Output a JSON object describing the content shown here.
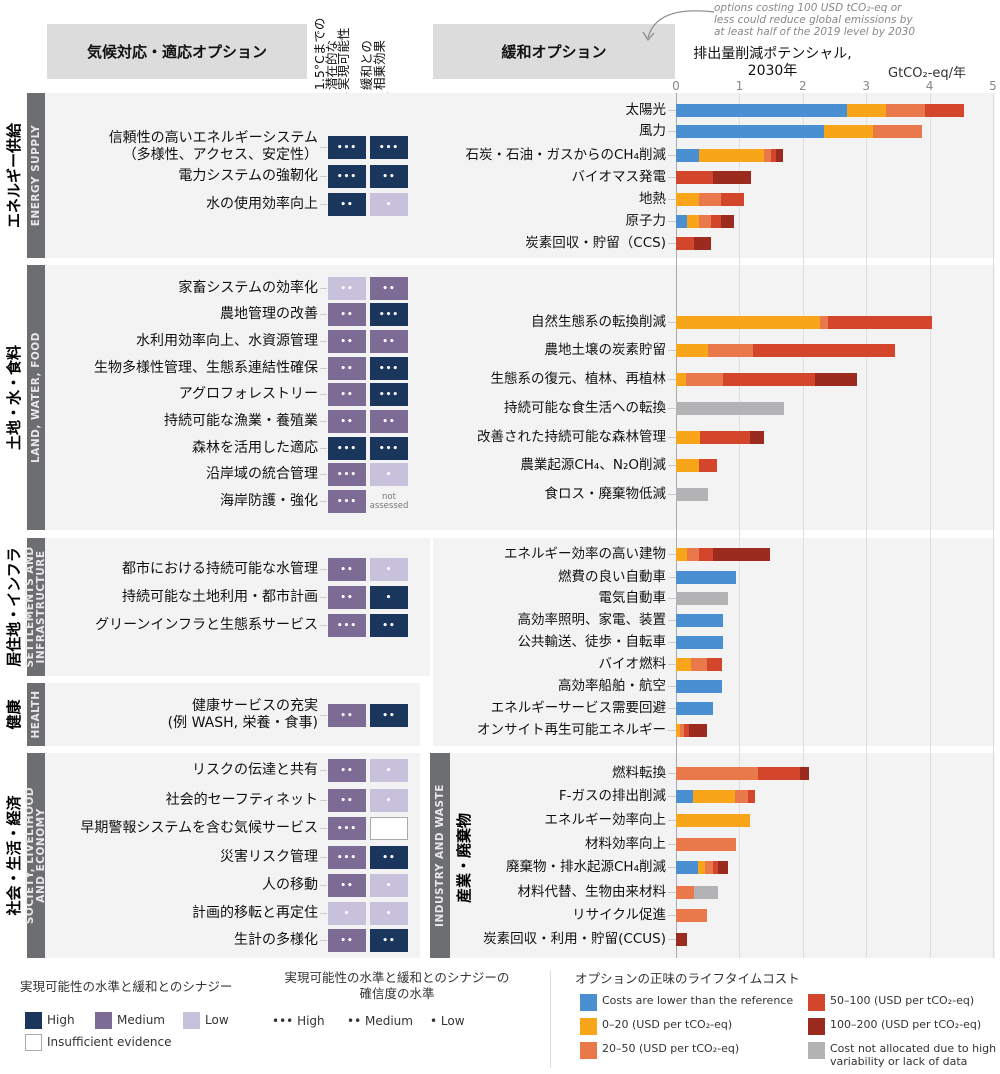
{
  "header": {
    "adaptation_title": "気候対応・適応オプション",
    "col_feasibility": "1.5°Cまでの\n潜在的な\n実現可能性",
    "col_synergy": "緩和との\n相乗効果",
    "mitigation_title": "緩和オプション",
    "annotation": "options costing 100 USD tCO₂-eq or\nless could reduce global emissions by\nat least half of the 2019 level by 2030"
  },
  "adaptation": {
    "sections": [
      {
        "label_jp": "エネルギー供給",
        "label_en": "ENERGY SUPPLY",
        "rows": [
          {
            "label": "信頼性の高いエネルギーシステム\n（多様性、アクセス、安定性）",
            "feasibility": {
              "level": "high",
              "confidence": "•••"
            },
            "synergy": {
              "level": "high",
              "confidence": "•••"
            }
          },
          {
            "label": "電力システムの強靭化",
            "feasibility": {
              "level": "high",
              "confidence": "•••"
            },
            "synergy": {
              "level": "high",
              "confidence": "••"
            }
          },
          {
            "label": "水の使用効率向上",
            "feasibility": {
              "level": "high",
              "confidence": "••"
            },
            "synergy": {
              "level": "low",
              "confidence": "•"
            }
          }
        ]
      },
      {
        "label_jp": "土地・水・食料",
        "label_en": "LAND, WATER, FOOD",
        "rows": [
          {
            "label": "家畜システムの効率化",
            "feasibility": {
              "level": "low",
              "confidence": "••"
            },
            "synergy": {
              "level": "medium",
              "confidence": "••"
            }
          },
          {
            "label": "農地管理の改善",
            "feasibility": {
              "level": "medium",
              "confidence": "••"
            },
            "synergy": {
              "level": "high",
              "confidence": "•••"
            }
          },
          {
            "label": "水利用効率向上、水資源管理",
            "feasibility": {
              "level": "medium",
              "confidence": "••"
            },
            "synergy": {
              "level": "medium",
              "confidence": "••"
            }
          },
          {
            "label": "生物多様性管理、生態系連結性確保",
            "feasibility": {
              "level": "medium",
              "confidence": "••"
            },
            "synergy": {
              "level": "high",
              "confidence": "•••"
            }
          },
          {
            "label": "アグロフォレストリー",
            "feasibility": {
              "level": "medium",
              "confidence": "••"
            },
            "synergy": {
              "level": "high",
              "confidence": "•••"
            }
          },
          {
            "label": "持続可能な漁業・養殖業",
            "feasibility": {
              "level": "medium",
              "confidence": "••"
            },
            "synergy": {
              "level": "medium",
              "confidence": "••"
            }
          },
          {
            "label": "森林を活用した適応",
            "feasibility": {
              "level": "high",
              "confidence": "•••"
            },
            "synergy": {
              "level": "high",
              "confidence": "•••"
            }
          },
          {
            "label": "沿岸域の統合管理",
            "feasibility": {
              "level": "medium",
              "confidence": "•••"
            },
            "synergy": {
              "level": "low",
              "confidence": "•"
            }
          },
          {
            "label": "海岸防護・強化",
            "feasibility": {
              "level": "medium",
              "confidence": "•••"
            },
            "synergy": {
              "level": "na",
              "confidence": "not\nassessed"
            }
          }
        ]
      },
      {
        "label_jp": "居住地・インフラ",
        "label_en": "SETTLEMENTS AND\nINFRASTRUCTURE",
        "rows": [
          {
            "label": "都市における持続可能な水管理",
            "feasibility": {
              "level": "medium",
              "confidence": "••"
            },
            "synergy": {
              "level": "low",
              "confidence": "•"
            }
          },
          {
            "label": "持続可能な土地利用・都市計画",
            "feasibility": {
              "level": "medium",
              "confidence": "••"
            },
            "synergy": {
              "level": "high",
              "confidence": "•"
            }
          },
          {
            "label": "グリーンインフラと生態系サービス",
            "feasibility": {
              "level": "medium",
              "confidence": "•••"
            },
            "synergy": {
              "level": "high",
              "confidence": "••"
            }
          }
        ]
      },
      {
        "label_jp": "健康",
        "label_en": "HEALTH",
        "rows": [
          {
            "label": "健康サービスの充実\n(例 WASH, 栄養・食事)",
            "feasibility": {
              "level": "medium",
              "confidence": "••"
            },
            "synergy": {
              "level": "high",
              "confidence": "••"
            }
          }
        ]
      },
      {
        "label_jp": "社会・生活・経済",
        "label_en": "SOCIETY, LIVELIHOOD\nAND ECONOMY",
        "rows": [
          {
            "label": "リスクの伝達と共有",
            "feasibility": {
              "level": "medium",
              "confidence": "••"
            },
            "synergy": {
              "level": "low",
              "confidence": "•"
            }
          },
          {
            "label": "社会的セーフティネット",
            "feasibility": {
              "level": "medium",
              "confidence": "••"
            },
            "synergy": {
              "level": "low",
              "confidence": "•"
            }
          },
          {
            "label": "早期警報システムを含む気候サービス",
            "feasibility": {
              "level": "medium",
              "confidence": "•••"
            },
            "synergy": {
              "level": "insufficient",
              "confidence": ""
            }
          },
          {
            "label": "災害リスク管理",
            "feasibility": {
              "level": "medium",
              "confidence": "•••"
            },
            "synergy": {
              "level": "high",
              "confidence": "••"
            }
          },
          {
            "label": "人の移動",
            "feasibility": {
              "level": "medium",
              "confidence": "••"
            },
            "synergy": {
              "level": "low",
              "confidence": "•"
            }
          },
          {
            "label": "計画的移転と再定住",
            "feasibility": {
              "level": "low",
              "confidence": "•"
            },
            "synergy": {
              "level": "low",
              "confidence": "•"
            }
          },
          {
            "label": "生計の多様化",
            "feasibility": {
              "level": "medium",
              "confidence": "••"
            },
            "synergy": {
              "level": "high",
              "confidence": "••"
            }
          }
        ]
      }
    ]
  },
  "chart_data": {
    "type": "bar",
    "orientation": "horizontal",
    "stacked": true,
    "title": "排出量削減ポテンシャル,\n2030年",
    "unit": "GtCO₂-eq/年",
    "xlim": [
      0,
      5
    ],
    "xticks": [
      "0",
      "1",
      "2",
      "3",
      "4",
      "5"
    ],
    "grid": true,
    "series": [
      {
        "name": "Costs are lower than the reference",
        "color": "#4a8fd1"
      },
      {
        "name": "0–20 (USD per tCO₂-eq)",
        "color": "#f9a51a"
      },
      {
        "name": "20–50 (USD per tCO₂-eq)",
        "color": "#e9794a"
      },
      {
        "name": "50–100 (USD per tCO₂-eq)",
        "color": "#d4462b"
      },
      {
        "name": "100–200 (USD per tCO₂-eq)",
        "color": "#9b2b1f"
      },
      {
        "name": "Cost not allocated due to high variability or lack of data",
        "color": "#b3b3b6"
      }
    ],
    "groups": [
      {
        "label_en": "",
        "label_jp": "",
        "bars": [
          {
            "label": "太陽光",
            "values": [
              2.7,
              0.62,
              0.61,
              0.61,
              0,
              0
            ]
          },
          {
            "label": "風力",
            "values": [
              2.33,
              0.77,
              0.78,
              0,
              0,
              0
            ]
          },
          {
            "label": "石炭・石油・ガスからのCH₄削減",
            "values": [
              0.37,
              1.02,
              0.11,
              0.07,
              0.11,
              0
            ]
          },
          {
            "label": "バイオマス発電",
            "values": [
              0,
              0,
              0,
              0.59,
              0.59,
              0
            ]
          },
          {
            "label": "地熱",
            "values": [
              0,
              0.37,
              0.34,
              0.36,
              0,
              0
            ]
          },
          {
            "label": "原子力",
            "values": [
              0.18,
              0.19,
              0.18,
              0.16,
              0.2,
              0
            ]
          },
          {
            "label": "炭素回収・貯留（CCS)",
            "values": [
              0,
              0,
              0,
              0.28,
              0.27,
              0
            ]
          }
        ]
      },
      {
        "label_en": "",
        "label_jp": "",
        "bars": [
          {
            "label": "自然生態系の転換削減",
            "values": [
              0,
              2.27,
              0.13,
              1.64,
              0,
              0
            ]
          },
          {
            "label": "農地土壌の炭素貯留",
            "values": [
              0,
              0.5,
              0.72,
              2.23,
              0,
              0
            ]
          },
          {
            "label": "生態系の復元、植林、再植林",
            "values": [
              0,
              0.16,
              0.58,
              1.45,
              0.66,
              0
            ]
          },
          {
            "label": "持続可能な食生活への転換",
            "values": [
              0,
              0,
              0,
              0,
              0,
              1.7
            ]
          },
          {
            "label": "改善された持続可能な森林管理",
            "values": [
              0,
              0.38,
              0,
              0.78,
              0.23,
              0
            ]
          },
          {
            "label": "農業起源CH₄、N₂O削減",
            "values": [
              0,
              0.36,
              0,
              0.28,
              0,
              0
            ]
          },
          {
            "label": "食ロス・廃棄物低減",
            "values": [
              0,
              0,
              0,
              0,
              0,
              0.5
            ]
          }
        ]
      },
      {
        "label_en": "",
        "label_jp": "",
        "bars": [
          {
            "label": "エネルギー効率の高い建物",
            "values": [
              0,
              0.18,
              0.18,
              0.22,
              0.9,
              0
            ]
          },
          {
            "label": "燃費の良い自動車",
            "values": [
              0.94,
              0,
              0,
              0,
              0,
              0
            ]
          },
          {
            "label": "電気自動車",
            "values": [
              0,
              0,
              0,
              0,
              0,
              0.82
            ]
          },
          {
            "label": "高効率照明、家電、装置",
            "values": [
              0.74,
              0,
              0,
              0,
              0,
              0
            ]
          },
          {
            "label": "公共輸送、徒歩・自転車",
            "values": [
              0.74,
              0,
              0,
              0,
              0,
              0
            ]
          },
          {
            "label": "バイオ燃料",
            "values": [
              0,
              0.23,
              0.26,
              0.24,
              0,
              0
            ]
          },
          {
            "label": "高効率船舶・航空",
            "values": [
              0.72,
              0,
              0,
              0,
              0,
              0
            ]
          },
          {
            "label": "エネルギーサービス需要回避",
            "values": [
              0.58,
              0,
              0,
              0,
              0,
              0
            ]
          },
          {
            "label": "オンサイト再生可能エネルギー",
            "values": [
              0,
              0.06,
              0.06,
              0.08,
              0.29,
              0
            ]
          }
        ]
      },
      {
        "label_en": "INDUSTRY AND WASTE",
        "label_jp": "産業・廃棄物",
        "bars": [
          {
            "label": "燃料転換",
            "values": [
              0,
              0,
              1.29,
              0.66,
              0.15,
              0
            ]
          },
          {
            "label": "F-ガスの排出削減",
            "values": [
              0.27,
              0.66,
              0.21,
              0.1,
              0,
              0
            ]
          },
          {
            "label": "エネルギー効率向上",
            "values": [
              0,
              1.16,
              0,
              0,
              0,
              0
            ]
          },
          {
            "label": "材料効率向上",
            "values": [
              0,
              0,
              0.94,
              0,
              0,
              0
            ]
          },
          {
            "label": "廃棄物・排水起源CH₄削減",
            "values": [
              0.35,
              0.11,
              0.13,
              0.08,
              0.15,
              0
            ]
          },
          {
            "label": "材料代替、生物由来材料",
            "values": [
              0,
              0,
              0.29,
              0,
              0,
              0.37
            ]
          },
          {
            "label": "リサイクル促進",
            "values": [
              0,
              0,
              0.49,
              0,
              0,
              0
            ]
          },
          {
            "label": "炭素回収・利用・貯留(CCUS)",
            "values": [
              0,
              0,
              0,
              0,
              0.17,
              0
            ]
          }
        ]
      }
    ]
  },
  "legend": {
    "level_title": "実現可能性の水準と緩和とのシナジー",
    "level_items": [
      {
        "label": "High",
        "color": "#1b365d"
      },
      {
        "label": "Medium",
        "color": "#7b6b95"
      },
      {
        "label": "Low",
        "color": "#c7c1dc"
      }
    ],
    "insufficient": "Insufficient evidence",
    "confidence_title": "実現可能性の水準と緩和とのシナジーの\n確信度の水準",
    "confidence_items": [
      {
        "dots": "•••",
        "label": "High"
      },
      {
        "dots": "••",
        "label": "Medium"
      },
      {
        "dots": "•",
        "label": "Low"
      }
    ],
    "cost_title": "オプションの正味のライフタイムコスト"
  }
}
